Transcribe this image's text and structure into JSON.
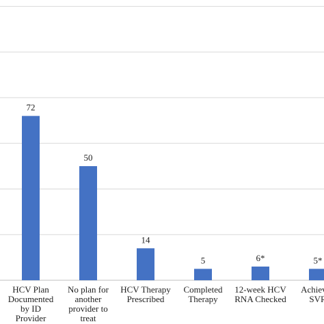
{
  "chart_data": {
    "type": "bar",
    "categories": [
      "HCV Plan Documented by ID Provider",
      "No plan for another provider to treat",
      "HCV Therapy Prescribed",
      "Completed Therapy",
      "12-week HCV RNA Checked",
      "Achieved SVR"
    ],
    "values": [
      72,
      50,
      14,
      5,
      6,
      5
    ],
    "value_labels": [
      "72",
      "50",
      "14",
      "5",
      "6*",
      "5*"
    ],
    "color": "#4472c4",
    "ylim": [
      0,
      121
    ],
    "yticks": [
      0,
      20,
      40,
      60,
      80,
      100,
      120
    ],
    "grid": true
  }
}
